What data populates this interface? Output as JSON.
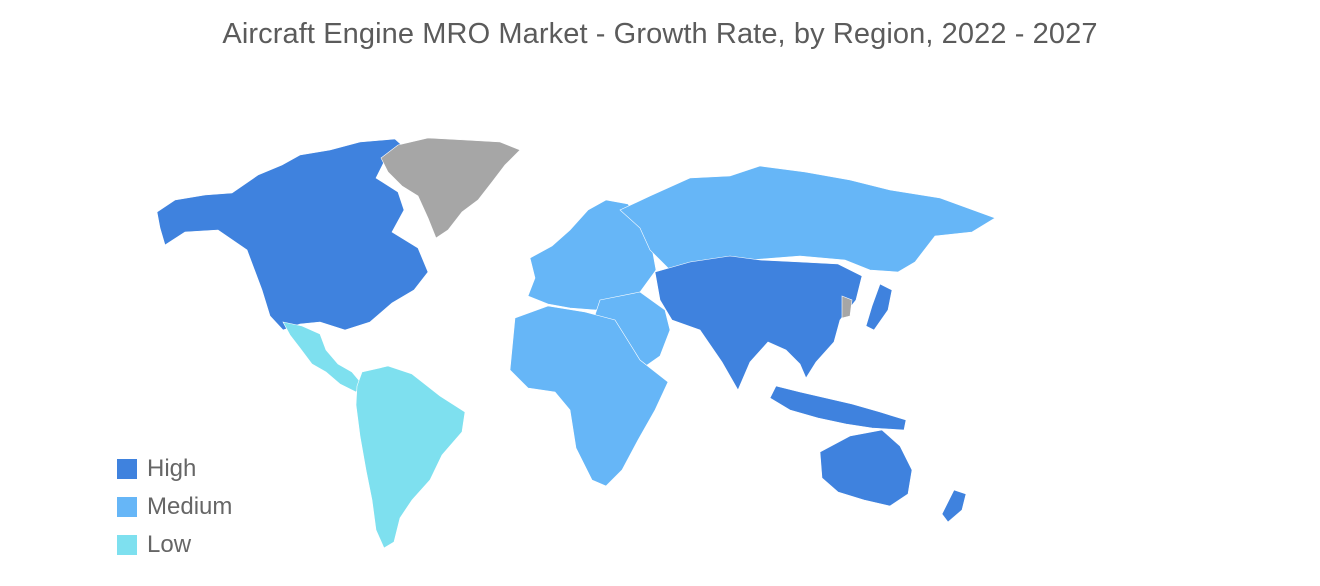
{
  "title": "Aircraft Engine MRO Market - Growth Rate, by Region, 2022 - 2027",
  "colors": {
    "high": "#3f82de",
    "medium": "#66b6f7",
    "low": "#7ee0ef",
    "no_data": "#a6a6a6",
    "background": "#ffffff"
  },
  "legend": [
    {
      "label": "High",
      "color": "#3f82de"
    },
    {
      "label": "Medium",
      "color": "#66b6f7"
    },
    {
      "label": "Low",
      "color": "#7ee0ef"
    }
  ],
  "regions": [
    {
      "name": "north-america",
      "level": "high"
    },
    {
      "name": "greenland",
      "level": "no-data"
    },
    {
      "name": "mexico-central-america",
      "level": "low"
    },
    {
      "name": "south-america",
      "level": "low"
    },
    {
      "name": "europe",
      "level": "medium"
    },
    {
      "name": "russia",
      "level": "medium"
    },
    {
      "name": "middle-east",
      "level": "medium"
    },
    {
      "name": "africa",
      "level": "medium"
    },
    {
      "name": "asia-pacific",
      "level": "high"
    },
    {
      "name": "australia-new-zealand",
      "level": "high"
    }
  ]
}
